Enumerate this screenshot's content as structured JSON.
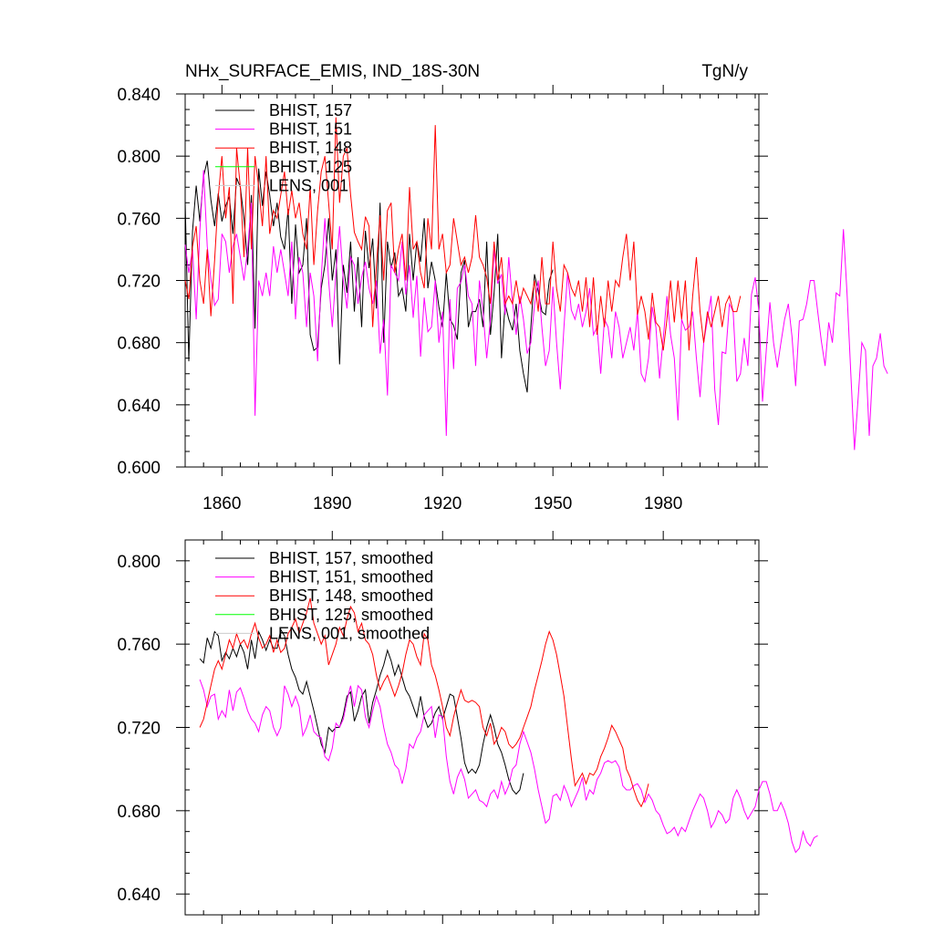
{
  "chart_data": [
    {
      "type": "line",
      "title": "NHx_SURFACE_EMIS, IND_18S-30N",
      "units": "TgN/y",
      "xlim": [
        1850,
        2006
      ],
      "ylim": [
        0.6,
        0.84
      ],
      "x_ticks": [
        1860,
        1890,
        1920,
        1950,
        1980
      ],
      "y_ticks": [
        0.6,
        0.64,
        0.68,
        0.72,
        0.76,
        0.8,
        0.84
      ],
      "y_tick_labels": [
        "0.600",
        "0.640",
        "0.680",
        "0.720",
        "0.760",
        "0.800",
        "0.840"
      ],
      "x_tick_labels": [
        "1860",
        "1890",
        "1920",
        "1950",
        "1980"
      ],
      "legend_position": "top-left",
      "series": [
        {
          "name": "BHIST, 157",
          "color": "#000000",
          "x_start": 1850,
          "values": [
            0.771,
            0.668,
            0.752,
            0.781,
            0.758,
            0.787,
            0.797,
            0.772,
            0.755,
            0.776,
            0.758,
            0.768,
            0.774,
            0.75,
            0.786,
            0.78,
            0.76,
            0.73,
            0.775,
            0.689,
            0.792,
            0.768,
            0.79,
            0.775,
            0.755,
            0.77,
            0.748,
            0.74,
            0.766,
            0.705,
            0.756,
            0.725,
            0.73,
            0.76,
            0.685,
            0.675,
            0.677,
            0.715,
            0.73,
            0.76,
            0.72,
            0.74,
            0.666,
            0.73,
            0.712,
            0.745,
            0.7,
            0.735,
            0.69,
            0.752,
            0.728,
            0.747,
            0.702,
            0.77,
            0.68,
            0.745,
            0.728,
            0.738,
            0.71,
            0.715,
            0.7,
            0.75,
            0.72,
            0.745,
            0.732,
            0.76,
            0.715,
            0.732,
            0.72,
            0.703,
            0.69,
            0.725,
            0.695,
            0.691,
            0.682,
            0.725,
            0.733,
            0.69,
            0.7,
            0.7,
            0.708,
            0.69,
            0.745,
            0.685,
            0.712,
            0.75,
            0.67,
            0.705,
            0.695,
            0.688,
            0.705,
            0.675,
            0.66,
            0.648,
            0.69,
            0.724,
            0.713,
            0.7,
            0.698,
            0.72,
            0.727
          ]
        },
        {
          "name": "BHIST, 151",
          "color": "#ff00ff",
          "x_start": 1850,
          "values": [
            0.743,
            0.725,
            0.74,
            0.695,
            0.752,
            0.791,
            0.742,
            0.721,
            0.704,
            0.708,
            0.75,
            0.745,
            0.725,
            0.742,
            0.75,
            0.735,
            0.72,
            0.74,
            0.77,
            0.633,
            0.72,
            0.71,
            0.725,
            0.71,
            0.742,
            0.725,
            0.74,
            0.725,
            0.71,
            0.745,
            0.695,
            0.735,
            0.725,
            0.69,
            0.725,
            0.71,
            0.668,
            0.722,
            0.76,
            0.72,
            0.69,
            0.725,
            0.755,
            0.72,
            0.702,
            0.735,
            0.73,
            0.705,
            0.722,
            0.732,
            0.715,
            0.705,
            0.72,
            0.673,
            0.695,
            0.646,
            0.73,
            0.725,
            0.72,
            0.745,
            0.711,
            0.73,
            0.696,
            0.723,
            0.671,
            0.709,
            0.687,
            0.69,
            0.72,
            0.68,
            0.7,
            0.62,
            0.708,
            0.663,
            0.715,
            0.719,
            0.73,
            0.71,
            0.705,
            0.665,
            0.72,
            0.7,
            0.67,
            0.695,
            0.74,
            0.718,
            0.724,
            0.698,
            0.735,
            0.706,
            0.685,
            0.71,
            0.695,
            0.673,
            0.68,
            0.704,
            0.72,
            0.69,
            0.665,
            0.675,
            0.716,
            0.68,
            0.65,
            0.69,
            0.725,
            0.701,
            0.695,
            0.705,
            0.69,
            0.7,
            0.715,
            0.685,
            0.69,
            0.66,
            0.695,
            0.69,
            0.67,
            0.7,
            0.69,
            0.67,
            0.68,
            0.69,
            0.675,
            0.7,
            0.66,
            0.655,
            0.67,
            0.703,
            0.69,
            0.657,
            0.683,
            0.71,
            0.685,
            0.67,
            0.63,
            0.695,
            0.688,
            0.69,
            0.7,
            0.67,
            0.645,
            0.68,
            0.695,
            0.71,
            0.65,
            0.627,
            0.674,
            0.673,
            0.705,
            0.7,
            0.655,
            0.66,
            0.683,
            0.665,
            0.711,
            0.722,
            0.7,
            0.642,
            0.675,
            0.706,
            0.68,
            0.664,
            0.68,
            0.695,
            0.705,
            0.684,
            0.652,
            0.694,
            0.695,
            0.705,
            0.72,
            0.72,
            0.7,
            0.681,
            0.665,
            0.693,
            0.68,
            0.712,
            0.71,
            0.753,
            0.71,
            0.66,
            0.611,
            0.645,
            0.68,
            0.675,
            0.62,
            0.665,
            0.67,
            0.686,
            0.665,
            0.66
          ]
        },
        {
          "name": "BHIST, 148",
          "color": "#ff0000",
          "x_start": 1850,
          "values": [
            0.72,
            0.708,
            0.742,
            0.755,
            0.72,
            0.705,
            0.74,
            0.697,
            0.733,
            0.774,
            0.8,
            0.76,
            0.78,
            0.705,
            0.805,
            0.78,
            0.735,
            0.805,
            0.74,
            0.8,
            0.78,
            0.755,
            0.8,
            0.75,
            0.765,
            0.76,
            0.775,
            0.79,
            0.762,
            0.778,
            0.76,
            0.77,
            0.75,
            0.74,
            0.78,
            0.73,
            0.765,
            0.79,
            0.8,
            0.77,
            0.74,
            0.825,
            0.77,
            0.8,
            0.805,
            0.775,
            0.751,
            0.745,
            0.74,
            0.761,
            0.755,
            0.69,
            0.73,
            0.762,
            0.72,
            0.765,
            0.77,
            0.725,
            0.74,
            0.75,
            0.72,
            0.78,
            0.74,
            0.745,
            0.725,
            0.715,
            0.76,
            0.74,
            0.82,
            0.74,
            0.75,
            0.725,
            0.73,
            0.76,
            0.745,
            0.73,
            0.735,
            0.725,
            0.735,
            0.762,
            0.735,
            0.73,
            0.722,
            0.705,
            0.745,
            0.72,
            0.735,
            0.705,
            0.71,
            0.705,
            0.72,
            0.705,
            0.715,
            0.71,
            0.705,
            0.72,
            0.7,
            0.735,
            0.705,
            0.705,
            0.745,
            0.715,
            0.7,
            0.73,
            0.725,
            0.715,
            0.71,
            0.72,
            0.7,
            0.722,
            0.69,
            0.722,
            0.685,
            0.71,
            0.69,
            0.72,
            0.7,
            0.72,
            0.716,
            0.735,
            0.75,
            0.72,
            0.745,
            0.698,
            0.71,
            0.7,
            0.682,
            0.712,
            0.693,
            0.69,
            0.675,
            0.695,
            0.72,
            0.693,
            0.72,
            0.695,
            0.72,
            0.675,
            0.71,
            0.735,
            0.7,
            0.68,
            0.7,
            0.69,
            0.7,
            0.71,
            0.69,
            0.705,
            0.71,
            0.7,
            0.7,
            0.71
          ]
        },
        {
          "name": "BHIST, 125",
          "color": "#00ff00",
          "x_start": 1850,
          "values": []
        },
        {
          "name": "LENS, 001",
          "color": "#cccccc",
          "x_start": 1850,
          "values": []
        }
      ]
    },
    {
      "type": "line",
      "xlim": [
        1850,
        2006
      ],
      "ylim": [
        0.63,
        0.81
      ],
      "y_ticks": [
        0.64,
        0.68,
        0.72,
        0.76,
        0.8
      ],
      "y_tick_labels": [
        "0.640",
        "0.680",
        "0.720",
        "0.760",
        "0.800"
      ],
      "x_ticks": [
        1860,
        1890,
        1920,
        1950,
        1980
      ],
      "legend_position": "top-left",
      "series": [
        {
          "name": "BHIST, 157, smoothed",
          "color": "#000000",
          "x_start": 1854,
          "values": [
            0.753,
            0.751,
            0.763,
            0.758,
            0.766,
            0.764,
            0.752,
            0.756,
            0.753,
            0.758,
            0.754,
            0.76,
            0.756,
            0.748,
            0.762,
            0.753,
            0.766,
            0.762,
            0.757,
            0.762,
            0.758,
            0.758,
            0.767,
            0.764,
            0.755,
            0.748,
            0.744,
            0.738,
            0.736,
            0.742,
            0.735,
            0.728,
            0.72,
            0.712,
            0.708,
            0.72,
            0.718,
            0.72,
            0.72,
            0.726,
            0.735,
            0.737,
            0.723,
            0.728,
            0.735,
            0.738,
            0.722,
            0.732,
            0.738,
            0.745,
            0.75,
            0.757,
            0.752,
            0.745,
            0.75,
            0.744,
            0.738,
            0.735,
            0.73,
            0.725,
            0.735,
            0.725,
            0.72,
            0.722,
            0.727,
            0.73,
            0.724,
            0.73,
            0.736,
            0.735,
            0.725,
            0.715,
            0.703,
            0.698,
            0.7,
            0.698,
            0.702,
            0.712,
            0.72,
            0.726,
            0.72,
            0.712,
            0.708,
            0.702,
            0.695,
            0.69,
            0.688,
            0.69,
            0.698
          ]
        },
        {
          "name": "BHIST, 151, smoothed",
          "color": "#ff00ff",
          "x_start": 1854,
          "values": [
            0.743,
            0.738,
            0.73,
            0.735,
            0.736,
            0.724,
            0.728,
            0.725,
            0.738,
            0.728,
            0.737,
            0.739,
            0.734,
            0.728,
            0.724,
            0.722,
            0.718,
            0.726,
            0.73,
            0.728,
            0.72,
            0.716,
            0.72,
            0.74,
            0.736,
            0.73,
            0.735,
            0.73,
            0.716,
            0.72,
            0.726,
            0.718,
            0.716,
            0.715,
            0.706,
            0.704,
            0.71,
            0.722,
            0.72,
            0.724,
            0.733,
            0.74,
            0.73,
            0.74,
            0.738,
            0.725,
            0.72,
            0.728,
            0.735,
            0.73,
            0.72,
            0.712,
            0.708,
            0.702,
            0.7,
            0.693,
            0.7,
            0.712,
            0.71,
            0.715,
            0.718,
            0.726,
            0.728,
            0.73,
            0.715,
            0.726,
            0.725,
            0.706,
            0.694,
            0.688,
            0.696,
            0.7,
            0.695,
            0.686,
            0.688,
            0.69,
            0.685,
            0.684,
            0.682,
            0.688,
            0.69,
            0.686,
            0.694,
            0.688,
            0.692,
            0.7,
            0.702,
            0.712,
            0.718,
            0.713,
            0.708,
            0.7,
            0.69,
            0.682,
            0.674,
            0.676,
            0.687,
            0.688,
            0.685,
            0.692,
            0.688,
            0.682,
            0.686,
            0.69,
            0.696,
            0.685,
            0.69,
            0.688,
            0.695,
            0.698,
            0.703,
            0.704,
            0.703,
            0.704,
            0.701,
            0.692,
            0.69,
            0.69,
            0.692,
            0.693,
            0.69,
            0.684,
            0.688,
            0.685,
            0.68,
            0.678,
            0.673,
            0.669,
            0.67,
            0.672,
            0.668,
            0.672,
            0.67,
            0.675,
            0.68,
            0.684,
            0.688,
            0.686,
            0.68,
            0.672,
            0.675,
            0.68,
            0.678,
            0.674,
            0.676,
            0.686,
            0.69,
            0.686,
            0.68,
            0.676,
            0.679,
            0.682,
            0.69,
            0.694,
            0.694,
            0.688,
            0.68,
            0.68,
            0.684,
            0.68,
            0.674,
            0.665,
            0.66,
            0.662,
            0.67,
            0.665,
            0.663,
            0.667,
            0.668
          ]
        },
        {
          "name": "BHIST, 148, smoothed",
          "color": "#ff0000",
          "x_start": 1854,
          "values": [
            0.72,
            0.724,
            0.732,
            0.74,
            0.748,
            0.752,
            0.748,
            0.755,
            0.762,
            0.758,
            0.765,
            0.76,
            0.762,
            0.758,
            0.765,
            0.77,
            0.763,
            0.758,
            0.76,
            0.764,
            0.756,
            0.762,
            0.756,
            0.758,
            0.765,
            0.768,
            0.772,
            0.765,
            0.77,
            0.775,
            0.782,
            0.77,
            0.765,
            0.76,
            0.764,
            0.75,
            0.755,
            0.76,
            0.768,
            0.764,
            0.772,
            0.778,
            0.775,
            0.766,
            0.77,
            0.762,
            0.76,
            0.755,
            0.745,
            0.738,
            0.742,
            0.745,
            0.74,
            0.735,
            0.74,
            0.746,
            0.755,
            0.762,
            0.76,
            0.754,
            0.75,
            0.765,
            0.762,
            0.75,
            0.745,
            0.738,
            0.73,
            0.72,
            0.716,
            0.725,
            0.732,
            0.738,
            0.733,
            0.732,
            0.733,
            0.732,
            0.73,
            0.72,
            0.716,
            0.722,
            0.712,
            0.715,
            0.72,
            0.718,
            0.712,
            0.71,
            0.712,
            0.715,
            0.72,
            0.725,
            0.73,
            0.738,
            0.745,
            0.752,
            0.76,
            0.766,
            0.762,
            0.755,
            0.745,
            0.735,
            0.72,
            0.705,
            0.692,
            0.695,
            0.698,
            0.693,
            0.698,
            0.697,
            0.7,
            0.706,
            0.71,
            0.715,
            0.721,
            0.718,
            0.714,
            0.71,
            0.7,
            0.696,
            0.69,
            0.685,
            0.682,
            0.686,
            0.693
          ]
        },
        {
          "name": "BHIST, 125, smoothed",
          "color": "#00ff00",
          "x_start": 1854,
          "values": []
        },
        {
          "name": "LENS, 001, smoothed",
          "color": "#cccccc",
          "x_start": 1854,
          "values": []
        }
      ]
    }
  ]
}
